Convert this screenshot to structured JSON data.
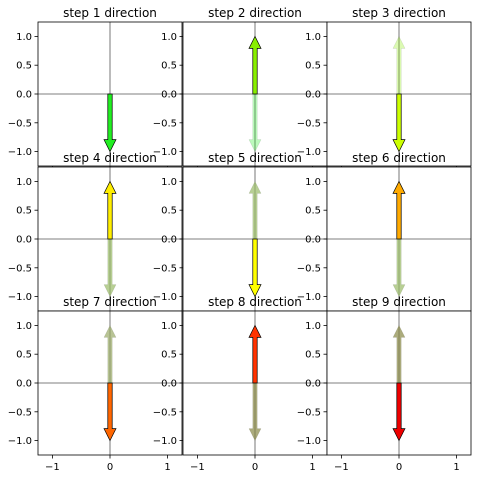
{
  "chart_data": [
    {
      "type": "vector",
      "title": "step 1 direction",
      "xlim": [
        -1.25,
        1.25
      ],
      "ylim": [
        -1.25,
        1.25
      ],
      "xticks": [
        -1,
        0,
        1
      ],
      "yticks": [
        -1.0,
        -0.5,
        0.0,
        0.5,
        1.0
      ],
      "arrows": [
        {
          "x": 0,
          "y0": 0,
          "y1": -1,
          "color": "#22ee22",
          "alpha": 1.0
        }
      ]
    },
    {
      "type": "vector",
      "title": "step 2 direction",
      "xlim": [
        -1.25,
        1.25
      ],
      "ylim": [
        -1.25,
        1.25
      ],
      "xticks": [
        -1,
        0,
        1
      ],
      "yticks": [
        -1.0,
        -0.5,
        0.0,
        0.5,
        1.0
      ],
      "arrows": [
        {
          "x": 0,
          "y0": 0,
          "y1": -1,
          "color": "#22ee22",
          "alpha": 0.3
        },
        {
          "x": 0,
          "y0": 0,
          "y1": 1,
          "color": "#88ee00",
          "alpha": 1.0
        }
      ]
    },
    {
      "type": "vector",
      "title": "step 3 direction",
      "xlim": [
        -1.25,
        1.25
      ],
      "ylim": [
        -1.25,
        1.25
      ],
      "xticks": [
        -1,
        0,
        1
      ],
      "yticks": [
        -1.0,
        -0.5,
        0.0,
        0.5,
        1.0
      ],
      "arrows": [
        {
          "x": 0,
          "y0": 0,
          "y1": 1,
          "color": "#88ee00",
          "alpha": 0.3
        },
        {
          "x": 0,
          "y0": 0,
          "y1": -1,
          "color": "#ccff00",
          "alpha": 1.0
        }
      ]
    },
    {
      "type": "vector",
      "title": "step 4 direction",
      "xlim": [
        -1.25,
        1.25
      ],
      "ylim": [
        -1.25,
        1.25
      ],
      "xticks": [
        -1,
        0,
        1
      ],
      "yticks": [
        -1.0,
        -0.5,
        0.0,
        0.5,
        1.0
      ],
      "arrows": [
        {
          "x": 0,
          "y0": 0,
          "y1": -1,
          "color": "#99bb66",
          "alpha": 0.7
        },
        {
          "x": 0,
          "y0": 0,
          "y1": 1,
          "color": "#ffee00",
          "alpha": 1.0
        }
      ]
    },
    {
      "type": "vector",
      "title": "step 5 direction",
      "xlim": [
        -1.25,
        1.25
      ],
      "ylim": [
        -1.25,
        1.25
      ],
      "xticks": [
        -1,
        0,
        1
      ],
      "yticks": [
        -1.0,
        -0.5,
        0.0,
        0.5,
        1.0
      ],
      "arrows": [
        {
          "x": 0,
          "y0": 0,
          "y1": 1,
          "color": "#99bb66",
          "alpha": 0.7
        },
        {
          "x": 0,
          "y0": 0,
          "y1": -1,
          "color": "#ffff00",
          "alpha": 1.0
        }
      ]
    },
    {
      "type": "vector",
      "title": "step 6 direction",
      "xlim": [
        -1.25,
        1.25
      ],
      "ylim": [
        -1.25,
        1.25
      ],
      "xticks": [
        -1,
        0,
        1
      ],
      "yticks": [
        -1.0,
        -0.5,
        0.0,
        0.5,
        1.0
      ],
      "arrows": [
        {
          "x": 0,
          "y0": 0,
          "y1": -1,
          "color": "#99bb66",
          "alpha": 0.7
        },
        {
          "x": 0,
          "y0": 0,
          "y1": 1,
          "color": "#ffaa00",
          "alpha": 1.0
        }
      ]
    },
    {
      "type": "vector",
      "title": "step 7 direction",
      "xlim": [
        -1.25,
        1.25
      ],
      "ylim": [
        -1.25,
        1.25
      ],
      "xticks": [
        -1,
        0,
        1
      ],
      "yticks": [
        -1.0,
        -0.5,
        0.0,
        0.5,
        1.0
      ],
      "arrows": [
        {
          "x": 0,
          "y0": 0,
          "y1": 1,
          "color": "#99aa66",
          "alpha": 0.7
        },
        {
          "x": 0,
          "y0": 0,
          "y1": -1,
          "color": "#ff6600",
          "alpha": 1.0
        }
      ]
    },
    {
      "type": "vector",
      "title": "step 8 direction",
      "xlim": [
        -1.25,
        1.25
      ],
      "ylim": [
        -1.25,
        1.25
      ],
      "xticks": [
        -1,
        0,
        1
      ],
      "yticks": [
        -1.0,
        -0.5,
        0.0,
        0.5,
        1.0
      ],
      "arrows": [
        {
          "x": 0,
          "y0": 0,
          "y1": -1,
          "color": "#888844",
          "alpha": 0.7
        },
        {
          "x": 0,
          "y0": 0,
          "y1": 1,
          "color": "#ff3300",
          "alpha": 1.0
        }
      ]
    },
    {
      "type": "vector",
      "title": "step 9 direction",
      "xlim": [
        -1.25,
        1.25
      ],
      "ylim": [
        -1.25,
        1.25
      ],
      "xticks": [
        -1,
        0,
        1
      ],
      "yticks": [
        -1.0,
        -0.5,
        0.0,
        0.5,
        1.0
      ],
      "arrows": [
        {
          "x": 0,
          "y0": 0,
          "y1": 1,
          "color": "#888844",
          "alpha": 0.7
        },
        {
          "x": 0,
          "y0": 0,
          "y1": -1,
          "color": "#ee0000",
          "alpha": 1.0
        }
      ]
    }
  ]
}
